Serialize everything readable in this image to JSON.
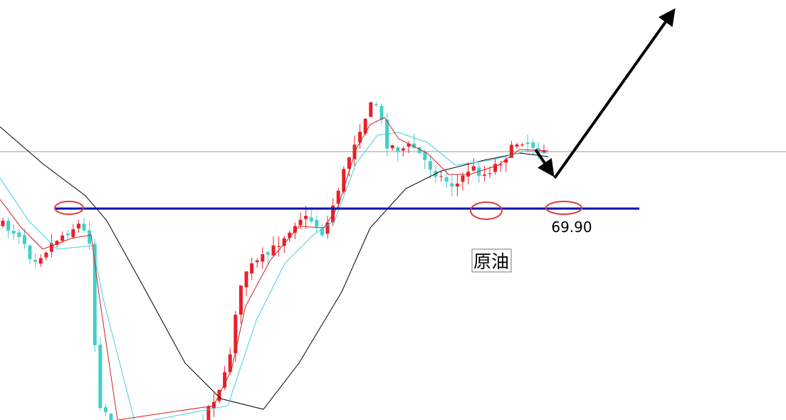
{
  "chart_data": {
    "type": "candlestick",
    "annotations": {
      "level": "69.90",
      "instrument": "原油"
    }
  }
}
